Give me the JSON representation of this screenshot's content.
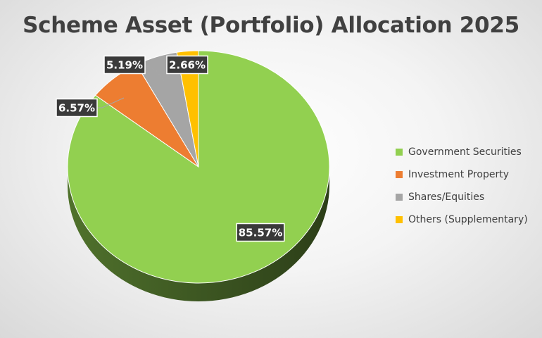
{
  "chart_data": {
    "type": "pie",
    "title": "Scheme Asset (Portfolio) Allocation 2025",
    "legend_position": "right",
    "slices": [
      {
        "label": "Government Securities",
        "value": 85.57,
        "data_label": "85.57%",
        "color": "#92D050"
      },
      {
        "label": "Investment Property",
        "value": 6.57,
        "data_label": "6.57%",
        "color": "#ED7D31"
      },
      {
        "label": "Shares/Equities",
        "value": 5.19,
        "data_label": "5.19%",
        "color": "#A5A5A5"
      },
      {
        "label": "Others (Supplementary)",
        "value": 2.66,
        "data_label": "2.66%",
        "color": "#FFC000"
      }
    ]
  }
}
